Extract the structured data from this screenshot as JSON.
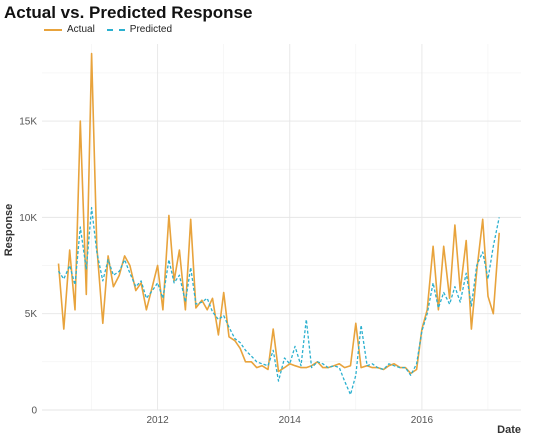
{
  "chart_data": {
    "type": "line",
    "title": "Actual vs. Predicted Response",
    "xlabel": "Date",
    "ylabel": "Response",
    "x_ticks": [
      2012,
      2014,
      2016
    ],
    "y_ticks": [
      0,
      5000,
      10000,
      15000
    ],
    "y_tick_labels": [
      "0",
      "5K",
      "10K",
      "15K"
    ],
    "xlim": [
      2010.25,
      2017.5
    ],
    "ylim": [
      0,
      19000
    ],
    "grid": true,
    "legend_position": "top-left",
    "colors": {
      "actual": "#E8A33C",
      "predicted": "#2BB0CF"
    },
    "x": [
      2010.5,
      2010.58,
      2010.67,
      2010.75,
      2010.83,
      2010.92,
      2011.0,
      2011.08,
      2011.17,
      2011.25,
      2011.33,
      2011.42,
      2011.5,
      2011.58,
      2011.67,
      2011.75,
      2011.83,
      2011.92,
      2012.0,
      2012.08,
      2012.17,
      2012.25,
      2012.33,
      2012.42,
      2012.5,
      2012.58,
      2012.67,
      2012.75,
      2012.83,
      2012.92,
      2013.0,
      2013.08,
      2013.17,
      2013.25,
      2013.33,
      2013.42,
      2013.5,
      2013.58,
      2013.67,
      2013.75,
      2013.83,
      2013.92,
      2014.0,
      2014.08,
      2014.17,
      2014.25,
      2014.33,
      2014.42,
      2014.5,
      2014.58,
      2014.67,
      2014.75,
      2014.83,
      2014.92,
      2015.0,
      2015.08,
      2015.17,
      2015.25,
      2015.33,
      2015.42,
      2015.5,
      2015.58,
      2015.67,
      2015.75,
      2015.83,
      2015.92,
      2016.0,
      2016.08,
      2016.17,
      2016.25,
      2016.33,
      2016.42,
      2016.5,
      2016.58,
      2016.67,
      2016.75,
      2016.83,
      2016.92,
      2017.0,
      2017.08,
      2017.17
    ],
    "series": [
      {
        "name": "Actual",
        "values": [
          7600,
          4200,
          8300,
          5200,
          15000,
          6000,
          18500,
          8500,
          4500,
          8000,
          6400,
          7000,
          8000,
          7500,
          6200,
          6600,
          5200,
          6400,
          7500,
          5200,
          10100,
          6700,
          8300,
          5200,
          9900,
          5300,
          5700,
          5200,
          5800,
          3900,
          6100,
          3800,
          3600,
          3200,
          2500,
          2500,
          2200,
          2300,
          2100,
          4200,
          2000,
          2200,
          2400,
          2300,
          2200,
          2200,
          2300,
          2500,
          2200,
          2200,
          2300,
          2400,
          2200,
          2300,
          4500,
          2200,
          2300,
          2200,
          2200,
          2100,
          2300,
          2400,
          2200,
          2200,
          1900,
          2100,
          4200,
          5200,
          8500,
          5200,
          8500,
          5800,
          9600,
          6200,
          8800,
          4200,
          7200,
          9900,
          5900,
          5000,
          9200
        ]
      },
      {
        "name": "Predicted",
        "values": [
          7200,
          6800,
          7500,
          6500,
          9500,
          7300,
          10500,
          8200,
          6700,
          7800,
          7000,
          7200,
          7800,
          7100,
          6400,
          6700,
          5800,
          6200,
          6600,
          5800,
          7800,
          6600,
          7000,
          5600,
          7400,
          5500,
          5600,
          5800,
          5100,
          4700,
          4900,
          4300,
          3700,
          3500,
          3100,
          2800,
          2500,
          2400,
          2300,
          3100,
          1500,
          2700,
          2400,
          3300,
          2300,
          4700,
          2200,
          2500,
          2400,
          2200,
          2300,
          2200,
          1500,
          800,
          1800,
          4400,
          2300,
          2400,
          2200,
          2100,
          2400,
          2300,
          2200,
          2200,
          1800,
          2400,
          4100,
          5000,
          6600,
          5300,
          6100,
          5500,
          6400,
          5600,
          7100,
          5400,
          7500,
          8200,
          6800,
          8500,
          10000
        ]
      }
    ]
  }
}
